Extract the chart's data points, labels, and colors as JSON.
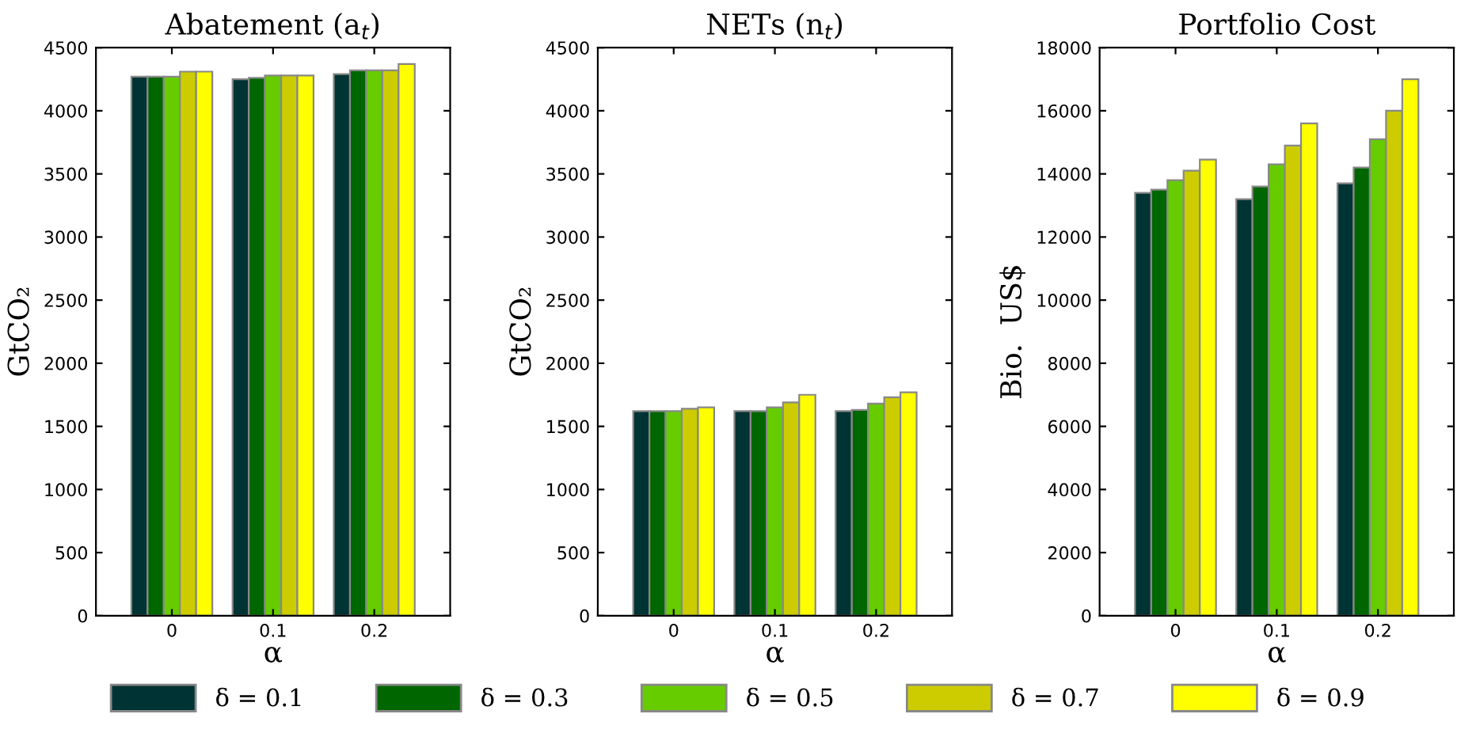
{
  "chart_data": [
    {
      "type": "bar",
      "title": "Abatement (a$_{t}$)",
      "ylabel": "GtCO₂",
      "xlabel": "α",
      "categories": [
        "0",
        "0.1",
        "0.2"
      ],
      "ylim": [
        0,
        4500
      ],
      "yticks": [
        0,
        500,
        1000,
        1500,
        2000,
        2500,
        3000,
        3500,
        4000,
        4500
      ],
      "grid": false,
      "legend": "bottom",
      "series": [
        {
          "name": "δ = 0.1",
          "color": "#003333",
          "values": [
            4270,
            4250,
            4290
          ]
        },
        {
          "name": "δ = 0.3",
          "color": "#006600",
          "values": [
            4270,
            4260,
            4320
          ]
        },
        {
          "name": "δ = 0.5",
          "color": "#66cc00",
          "values": [
            4270,
            4280,
            4320
          ]
        },
        {
          "name": "δ = 0.7",
          "color": "#cccc00",
          "values": [
            4310,
            4280,
            4320
          ]
        },
        {
          "name": "δ = 0.9",
          "color": "#ffff00",
          "values": [
            4310,
            4280,
            4370
          ]
        }
      ]
    },
    {
      "type": "bar",
      "title": "NETs (n$_{t}$)",
      "ylabel": "GtCO₂",
      "xlabel": "α",
      "categories": [
        "0",
        "0.1",
        "0.2"
      ],
      "ylim": [
        0,
        4500
      ],
      "yticks": [
        0,
        500,
        1000,
        1500,
        2000,
        2500,
        3000,
        3500,
        4000,
        4500
      ],
      "grid": false,
      "series": [
        {
          "color": "#003333",
          "values": [
            1620,
            1620,
            1620
          ]
        },
        {
          "color": "#006600",
          "values": [
            1620,
            1620,
            1630
          ]
        },
        {
          "color": "#66cc00",
          "values": [
            1620,
            1650,
            1680
          ]
        },
        {
          "color": "#cccc00",
          "values": [
            1640,
            1690,
            1730
          ]
        },
        {
          "color": "#ffff00",
          "values": [
            1650,
            1750,
            1770
          ]
        }
      ]
    },
    {
      "type": "bar",
      "title": "Portfolio Cost",
      "ylabel": "Bio.  US$",
      "xlabel": "α",
      "categories": [
        "0",
        "0.1",
        "0.2"
      ],
      "ylim": [
        0,
        18000
      ],
      "yticks": [
        0,
        2000,
        4000,
        6000,
        8000,
        10000,
        12000,
        14000,
        16000,
        18000
      ],
      "grid": false,
      "series": [
        {
          "color": "#003333",
          "values": [
            13400,
            13200,
            13700
          ]
        },
        {
          "color": "#006600",
          "values": [
            13500,
            13600,
            14200
          ]
        },
        {
          "color": "#66cc00",
          "values": [
            13800,
            14300,
            15100
          ]
        },
        {
          "color": "#cccc00",
          "values": [
            14100,
            14900,
            16000
          ]
        },
        {
          "color": "#ffff00",
          "values": [
            14450,
            15600,
            17000
          ]
        }
      ]
    }
  ]
}
